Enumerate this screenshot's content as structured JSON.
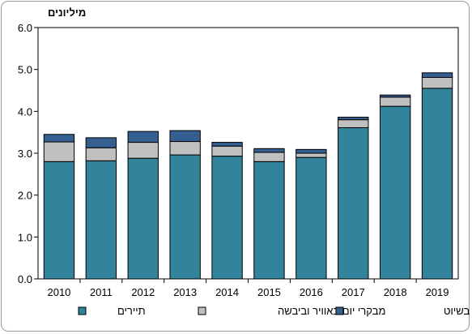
{
  "chart_data": {
    "type": "bar",
    "stacked": true,
    "ylabel": "מיליונים",
    "ylim": [
      0,
      6
    ],
    "yticks": [
      "0.0",
      "1.0",
      "2.0",
      "3.0",
      "4.0",
      "5.0",
      "6.0"
    ],
    "ytick_values": [
      0,
      1,
      2,
      3,
      4,
      5,
      6
    ],
    "categories": [
      "2010",
      "2011",
      "2012",
      "2013",
      "2014",
      "2015",
      "2016",
      "2017",
      "2018",
      "2019"
    ],
    "series": [
      {
        "name": "תיירים",
        "color": "#31849b",
        "values": [
          2.8,
          2.82,
          2.88,
          2.96,
          2.93,
          2.8,
          2.9,
          3.61,
          4.12,
          4.55
        ]
      },
      {
        "name": "מבקרי יום באוויר וביבשה",
        "color": "#c0c0c0",
        "values": [
          0.47,
          0.31,
          0.38,
          0.32,
          0.24,
          0.22,
          0.1,
          0.19,
          0.22,
          0.26
        ]
      },
      {
        "name": "מבקרי יום נוסעים בשיוט",
        "color": "#365f91",
        "values": [
          0.18,
          0.24,
          0.26,
          0.26,
          0.09,
          0.09,
          0.09,
          0.06,
          0.05,
          0.11
        ]
      }
    ],
    "grid": false,
    "legend": "bottom"
  }
}
